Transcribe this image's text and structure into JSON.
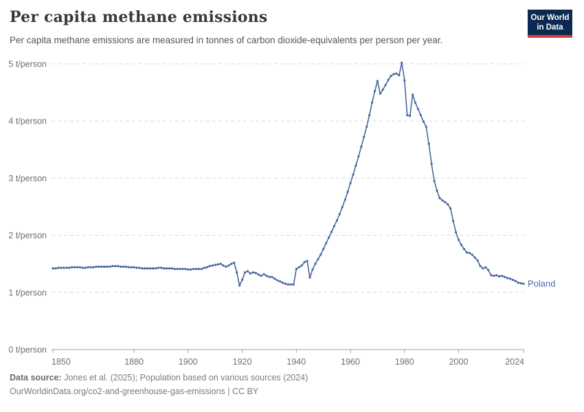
{
  "header": {
    "title": "Per capita methane emissions",
    "subtitle": "Per capita methane emissions are measured in tonnes of carbon dioxide-equivalents per person per year.",
    "logo": {
      "line1": "Our World",
      "line2": "in Data"
    }
  },
  "chart_data": {
    "type": "line",
    "title": "Per capita methane emissions",
    "ylabel": "t/person",
    "xlim": [
      1850,
      2024
    ],
    "ylim": [
      0,
      5
    ],
    "grid": "horizontal-dashed",
    "legend_position": "end-of-line-label",
    "yticks": [
      0,
      1,
      2,
      3,
      4,
      5
    ],
    "ytick_labels": [
      "0 t/person",
      "1 t/person",
      "2 t/person",
      "3 t/person",
      "4 t/person",
      "5 t/person"
    ],
    "xticks": [
      1850,
      1880,
      1900,
      1920,
      1940,
      1960,
      1980,
      2000,
      2024
    ],
    "series": [
      {
        "name": "Poland",
        "end_label": "Poland",
        "years": {
          "start": 1850,
          "end": 2024,
          "step": 1
        },
        "values": [
          1.42,
          1.42,
          1.43,
          1.43,
          1.43,
          1.43,
          1.43,
          1.44,
          1.44,
          1.44,
          1.44,
          1.43,
          1.43,
          1.44,
          1.44,
          1.44,
          1.45,
          1.45,
          1.45,
          1.45,
          1.45,
          1.45,
          1.46,
          1.46,
          1.46,
          1.45,
          1.45,
          1.45,
          1.44,
          1.44,
          1.44,
          1.43,
          1.43,
          1.42,
          1.42,
          1.42,
          1.42,
          1.42,
          1.42,
          1.43,
          1.43,
          1.42,
          1.42,
          1.42,
          1.42,
          1.41,
          1.41,
          1.41,
          1.41,
          1.41,
          1.4,
          1.4,
          1.41,
          1.41,
          1.41,
          1.41,
          1.43,
          1.44,
          1.46,
          1.47,
          1.48,
          1.49,
          1.5,
          1.47,
          1.45,
          1.47,
          1.5,
          1.52,
          1.35,
          1.12,
          1.22,
          1.35,
          1.37,
          1.33,
          1.35,
          1.34,
          1.31,
          1.29,
          1.32,
          1.29,
          1.27,
          1.27,
          1.24,
          1.21,
          1.19,
          1.17,
          1.15,
          1.14,
          1.14,
          1.14,
          1.41,
          1.44,
          1.47,
          1.53,
          1.55,
          1.26,
          1.4,
          1.5,
          1.58,
          1.66,
          1.76,
          1.86,
          1.96,
          2.06,
          2.16,
          2.26,
          2.37,
          2.49,
          2.62,
          2.76,
          2.91,
          3.06,
          3.22,
          3.38,
          3.55,
          3.72,
          3.9,
          4.1,
          4.32,
          4.52,
          4.7,
          4.48,
          4.55,
          4.63,
          4.72,
          4.79,
          4.82,
          4.83,
          4.8,
          5.02,
          4.71,
          4.1,
          4.09,
          4.46,
          4.32,
          4.21,
          4.1,
          3.99,
          3.9,
          3.6,
          3.25,
          2.95,
          2.78,
          2.65,
          2.61,
          2.58,
          2.54,
          2.47,
          2.25,
          2.05,
          1.92,
          1.83,
          1.76,
          1.7,
          1.69,
          1.66,
          1.61,
          1.56,
          1.46,
          1.42,
          1.44,
          1.39,
          1.3,
          1.29,
          1.3,
          1.28,
          1.29,
          1.27,
          1.25,
          1.24,
          1.22,
          1.2,
          1.17,
          1.16,
          1.15
        ]
      }
    ]
  },
  "colors": {
    "line": "#4766a0",
    "entity_label": "#53689b",
    "grid": "#d9d9d9",
    "axis": "#a3a3a3",
    "tick_text": "#6e6e6e",
    "logo_bg": "#0b2a51",
    "logo_accent": "#d73c34"
  },
  "footer": {
    "source_label": "Data source:",
    "source_text": " Jones et al. (2025); Population based on various sources (2024)",
    "link_line": "OurWorldinData.org/co2-and-greenhouse-gas-emissions | CC BY"
  }
}
